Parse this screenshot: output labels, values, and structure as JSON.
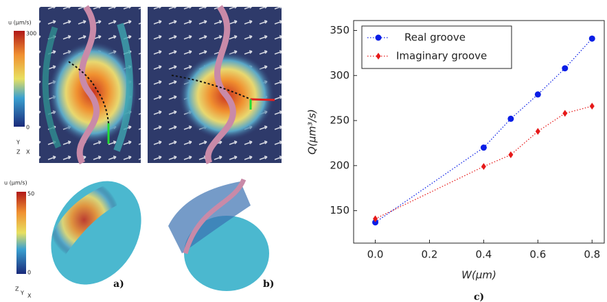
{
  "figure": {
    "panel_a_top": {
      "colorbar_title": "u (μm/s)",
      "colorbar_max": 300,
      "colorbar_min": 0,
      "axes": [
        "Y",
        "Z",
        "X"
      ]
    },
    "panel_a_bottom": {
      "colorbar_title": "u (μm/s)",
      "colorbar_max": 50,
      "colorbar_min": 0,
      "axes": [
        "Z",
        "Y",
        "X"
      ]
    },
    "labels": [
      "a)",
      "b)",
      "c)"
    ]
  },
  "chart_data": {
    "type": "line",
    "x": [
      0.0,
      0.4,
      0.5,
      0.6,
      0.7,
      0.8
    ],
    "series": [
      {
        "name": "Real groove",
        "color": "#0a1ee6",
        "marker": "circle",
        "values": [
          137,
          220,
          252,
          279,
          308,
          341
        ]
      },
      {
        "name": "Imaginary groove",
        "color": "#e61919",
        "marker": "diamond",
        "values": [
          141,
          199,
          212,
          238,
          258,
          266
        ]
      }
    ],
    "xlabel": "W(μm)",
    "ylabel": "Q(μm³/s)",
    "xlim": [
      -0.08,
      0.845
    ],
    "ylim": [
      114,
      361
    ],
    "xticks": [
      {
        "value": 0,
        "label": "0.0"
      },
      0.2,
      0.4,
      0.6,
      0.8
    ],
    "yticks": [
      150,
      200,
      250,
      300,
      350
    ],
    "legend": "upper-left",
    "line_style": "dotted"
  }
}
